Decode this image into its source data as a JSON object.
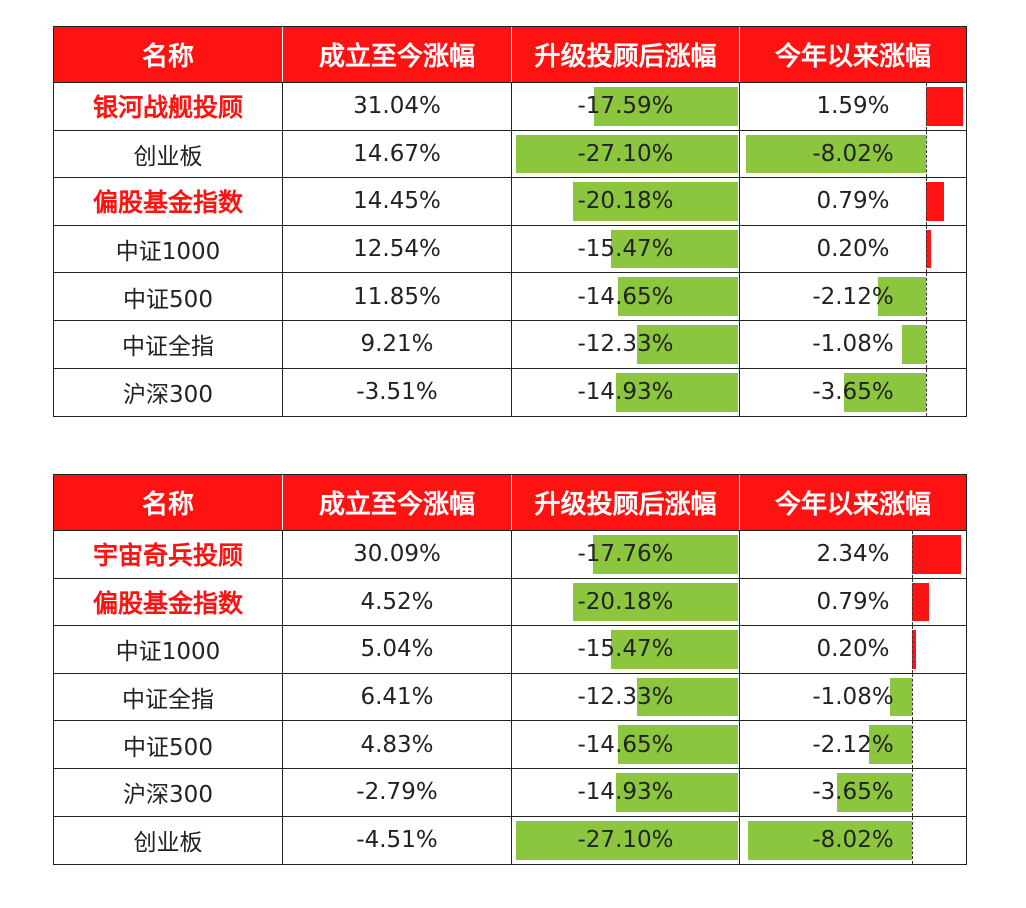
{
  "columns": [
    "名称",
    "成立至今涨幅",
    "升级投顾后涨幅",
    "今年以来涨幅"
  ],
  "colors": {
    "header_bg": "#ff1212",
    "header_text": "#ffffff",
    "neg_bar": "#8cc63f",
    "pos_bar": "#ff1212",
    "highlight_text": "#ff1212"
  },
  "chart_data": [
    {
      "type": "table",
      "columns": [
        "名称",
        "成立至今涨幅",
        "升级投顾后涨幅",
        "今年以来涨幅"
      ],
      "rows": [
        {
          "name": "银河战舰投顾",
          "highlight": true,
          "since_inception": "31.04%",
          "since_upgrade": "-17.59%",
          "since_upgrade_value": -17.59,
          "ytd": "1.59%",
          "ytd_value": 1.59
        },
        {
          "name": "创业板",
          "highlight": false,
          "since_inception": "14.67%",
          "since_upgrade": "-27.10%",
          "since_upgrade_value": -27.1,
          "ytd": "-8.02%",
          "ytd_value": -8.02
        },
        {
          "name": "偏股基金指数",
          "highlight": true,
          "since_inception": "14.45%",
          "since_upgrade": "-20.18%",
          "since_upgrade_value": -20.18,
          "ytd": "0.79%",
          "ytd_value": 0.79
        },
        {
          "name": "中证1000",
          "highlight": false,
          "since_inception": "12.54%",
          "since_upgrade": "-15.47%",
          "since_upgrade_value": -15.47,
          "ytd": "0.20%",
          "ytd_value": 0.2
        },
        {
          "name": "中证500",
          "highlight": false,
          "since_inception": "11.85%",
          "since_upgrade": "-14.65%",
          "since_upgrade_value": -14.65,
          "ytd": "-2.12%",
          "ytd_value": -2.12
        },
        {
          "name": "中证全指",
          "highlight": false,
          "since_inception": "9.21%",
          "since_upgrade": "-12.33%",
          "since_upgrade_value": -12.33,
          "ytd": "-1.08%",
          "ytd_value": -1.08
        },
        {
          "name": "沪深300",
          "highlight": false,
          "since_inception": "-3.51%",
          "since_upgrade": "-14.93%",
          "since_upgrade_value": -14.93,
          "ytd": "-3.65%",
          "ytd_value": -3.65
        }
      ]
    },
    {
      "type": "table",
      "columns": [
        "名称",
        "成立至今涨幅",
        "升级投顾后涨幅",
        "今年以来涨幅"
      ],
      "rows": [
        {
          "name": "宇宙奇兵投顾",
          "highlight": true,
          "since_inception": "30.09%",
          "since_upgrade": "-17.76%",
          "since_upgrade_value": -17.76,
          "ytd": "2.34%",
          "ytd_value": 2.34
        },
        {
          "name": "偏股基金指数",
          "highlight": true,
          "since_inception": "4.52%",
          "since_upgrade": "-20.18%",
          "since_upgrade_value": -20.18,
          "ytd": "0.79%",
          "ytd_value": 0.79
        },
        {
          "name": "中证1000",
          "highlight": false,
          "since_inception": "5.04%",
          "since_upgrade": "-15.47%",
          "since_upgrade_value": -15.47,
          "ytd": "0.20%",
          "ytd_value": 0.2
        },
        {
          "name": "中证全指",
          "highlight": false,
          "since_inception": "6.41%",
          "since_upgrade": "-12.33%",
          "since_upgrade_value": -12.33,
          "ytd": "-1.08%",
          "ytd_value": -1.08
        },
        {
          "name": "中证500",
          "highlight": false,
          "since_inception": "4.83%",
          "since_upgrade": "-14.65%",
          "since_upgrade_value": -14.65,
          "ytd": "-2.12%",
          "ytd_value": -2.12
        },
        {
          "name": "沪深300",
          "highlight": false,
          "since_inception": "-2.79%",
          "since_upgrade": "-14.93%",
          "since_upgrade_value": -14.93,
          "ytd": "-3.65%",
          "ytd_value": -3.65
        },
        {
          "name": "创业板",
          "highlight": false,
          "since_inception": "-4.51%",
          "since_upgrade": "-27.10%",
          "since_upgrade_value": -27.1,
          "ytd": "-8.02%",
          "ytd_value": -8.02
        }
      ]
    }
  ]
}
